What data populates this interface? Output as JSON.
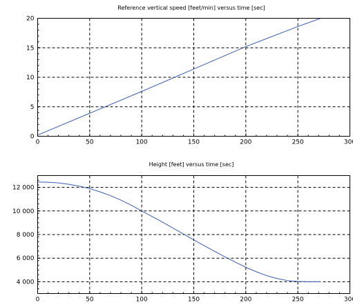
{
  "chart_data": [
    {
      "type": "line",
      "title": "Reference vertical speed [feet/min] versus time [sec]",
      "xlabel": "",
      "ylabel": "",
      "xlim": [
        0,
        300
      ],
      "ylim": [
        0,
        20
      ],
      "x_ticks": [
        0,
        50,
        100,
        150,
        200,
        250,
        300
      ],
      "y_ticks": [
        0,
        5,
        10,
        15,
        20
      ],
      "x_tick_labels": [
        "0",
        "50",
        "100",
        "150",
        "200",
        "250",
        "300"
      ],
      "y_tick_labels": [
        "0",
        "5",
        "10",
        "15",
        "20"
      ],
      "grid": true,
      "line_color": "#3b5cab",
      "series": [
        {
          "x": [
            0,
            50,
            100,
            150,
            200,
            250,
            272
          ],
          "y": [
            0.2,
            3.9,
            7.6,
            11.4,
            15.2,
            18.6,
            20.0
          ]
        }
      ]
    },
    {
      "type": "line",
      "title": "Height [feet] versus time [sec]",
      "xlabel": "",
      "ylabel": "",
      "xlim": [
        0,
        300
      ],
      "ylim": [
        3000,
        13000
      ],
      "x_ticks": [
        0,
        50,
        100,
        150,
        200,
        250,
        300
      ],
      "y_ticks": [
        4000,
        6000,
        8000,
        10000,
        12000
      ],
      "x_tick_labels": [
        "0",
        "50",
        "100",
        "150",
        "200",
        "250",
        "300"
      ],
      "y_tick_labels": [
        "4 000",
        "6 000",
        "8 000",
        "10 000",
        "12 000"
      ],
      "grid": true,
      "line_color": "#3b5cab",
      "series": [
        {
          "x": [
            0,
            10,
            20,
            30,
            40,
            50,
            60,
            70,
            80,
            90,
            100,
            110,
            120,
            130,
            140,
            150,
            160,
            170,
            180,
            190,
            200,
            210,
            220,
            230,
            240,
            250,
            260,
            272
          ],
          "y": [
            12450,
            12440,
            12380,
            12260,
            12100,
            11900,
            11620,
            11300,
            10920,
            10480,
            10000,
            9530,
            9050,
            8550,
            8050,
            7550,
            7060,
            6580,
            6110,
            5660,
            5230,
            4850,
            4520,
            4270,
            4100,
            4020,
            4000,
            4000
          ]
        }
      ]
    }
  ]
}
